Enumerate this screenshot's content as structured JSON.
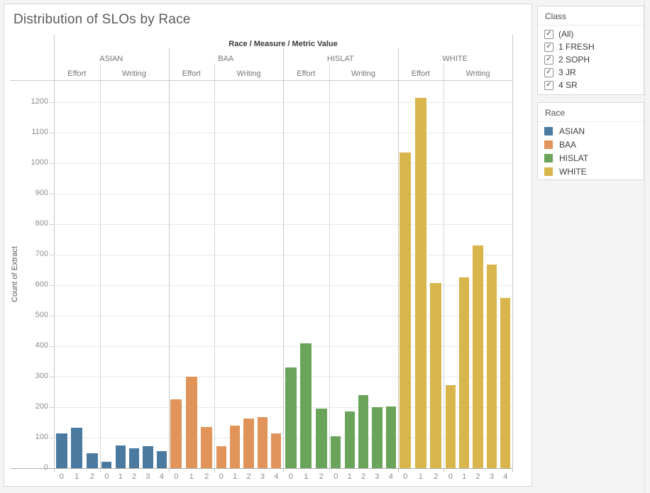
{
  "title": "Distribution of SLOs by Race",
  "filters": {
    "class": {
      "title": "Class",
      "checkbox_icon": "✓",
      "items": [
        {
          "label": "(All)",
          "checked": true
        },
        {
          "label": "1 FRESH",
          "checked": true
        },
        {
          "label": "2 SOPH",
          "checked": true
        },
        {
          "label": "3 JR",
          "checked": true
        },
        {
          "label": "4 SR",
          "checked": true
        }
      ]
    }
  },
  "legend": {
    "title": "Race",
    "items": [
      {
        "label": "ASIAN",
        "color": "#4a7aa0"
      },
      {
        "label": "BAA",
        "color": "#e0945a"
      },
      {
        "label": "HISLAT",
        "color": "#6aa45a"
      },
      {
        "label": "WHITE",
        "color": "#d8b64c"
      }
    ]
  },
  "chart_data": {
    "type": "bar",
    "title": "Distribution of SLOs by Race",
    "column_header": "Race / Measure / Metric Value",
    "ylabel": "Count of Extract",
    "ylim": [
      0,
      1272
    ],
    "yticks": [
      0,
      100,
      200,
      300,
      400,
      500,
      600,
      700,
      800,
      900,
      1000,
      1100,
      1200
    ],
    "grid": true,
    "legend_position": "right",
    "groups": [
      {
        "race": "ASIAN",
        "color": "#4a7aa0",
        "panels": [
          {
            "measure": "Effort",
            "categories": [
              "0",
              "1",
              "2"
            ],
            "values": [
              115,
              133,
              50
            ]
          },
          {
            "measure": "Writing",
            "categories": [
              "0",
              "1",
              "2",
              "3",
              "4"
            ],
            "values": [
              20,
              75,
              65,
              72,
              57
            ]
          }
        ]
      },
      {
        "race": "BAA",
        "color": "#e0945a",
        "panels": [
          {
            "measure": "Effort",
            "categories": [
              "0",
              "1",
              "2"
            ],
            "values": [
              225,
              300,
              135
            ]
          },
          {
            "measure": "Writing",
            "categories": [
              "0",
              "1",
              "2",
              "3",
              "4"
            ],
            "values": [
              73,
              140,
              163,
              168,
              113
            ]
          }
        ]
      },
      {
        "race": "HISLAT",
        "color": "#6aa45a",
        "panels": [
          {
            "measure": "Effort",
            "categories": [
              "0",
              "1",
              "2"
            ],
            "values": [
              330,
              410,
              195
            ]
          },
          {
            "measure": "Writing",
            "categories": [
              "0",
              "1",
              "2",
              "3",
              "4"
            ],
            "values": [
              105,
              185,
              240,
              200,
              203
            ]
          }
        ]
      },
      {
        "race": "WHITE",
        "color": "#d8b64c",
        "panels": [
          {
            "measure": "Effort",
            "categories": [
              "0",
              "1",
              "2"
            ],
            "values": [
              1035,
              1215,
              607
            ]
          },
          {
            "measure": "Writing",
            "categories": [
              "0",
              "1",
              "2",
              "3",
              "4"
            ],
            "values": [
              272,
              625,
              730,
              667,
              558
            ]
          }
        ]
      }
    ]
  }
}
